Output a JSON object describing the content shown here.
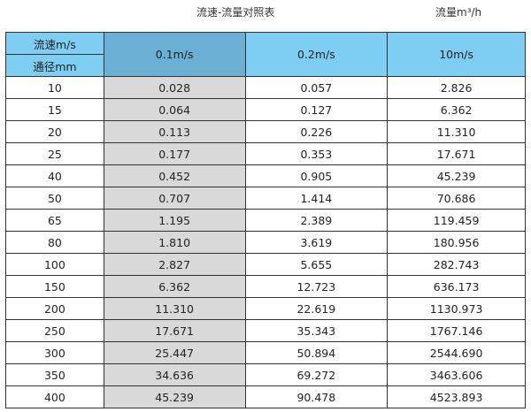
{
  "title": "流速-流量对照表",
  "unit": "流量m³/h",
  "header": {
    "velocity_label": "流速m/s",
    "diameter_label": "通径mm",
    "columns": [
      "0.1m/s",
      "0.2m/s",
      "10m/s"
    ]
  },
  "colors": {
    "header": "#7ecef4",
    "header_highlight": "#6ab0d4",
    "highlight_column": "#d9d9d9"
  },
  "rows": [
    [
      "10",
      "0.028",
      "0.057",
      "2.826"
    ],
    [
      "15",
      "0.064",
      "0.127",
      "6.362"
    ],
    [
      "20",
      "0.113",
      "0.226",
      "11.310"
    ],
    [
      "25",
      "0.177",
      "0.353",
      "17.671"
    ],
    [
      "40",
      "0.452",
      "0.905",
      "45.239"
    ],
    [
      "50",
      "0.707",
      "1.414",
      "70.686"
    ],
    [
      "65",
      "1.195",
      "2.389",
      "119.459"
    ],
    [
      "80",
      "1.810",
      "3.619",
      "180.956"
    ],
    [
      "100",
      "2.827",
      "5.655",
      "282.743"
    ],
    [
      "150",
      "6.362",
      "12.723",
      "636.173"
    ],
    [
      "200",
      "11.310",
      "22.619",
      "1130.973"
    ],
    [
      "250",
      "17.671",
      "35.343",
      "1767.146"
    ],
    [
      "300",
      "25.447",
      "50.894",
      "2544.690"
    ],
    [
      "350",
      "34.636",
      "69.272",
      "3463.606"
    ],
    [
      "400",
      "45.239",
      "90.478",
      "4523.893"
    ]
  ]
}
